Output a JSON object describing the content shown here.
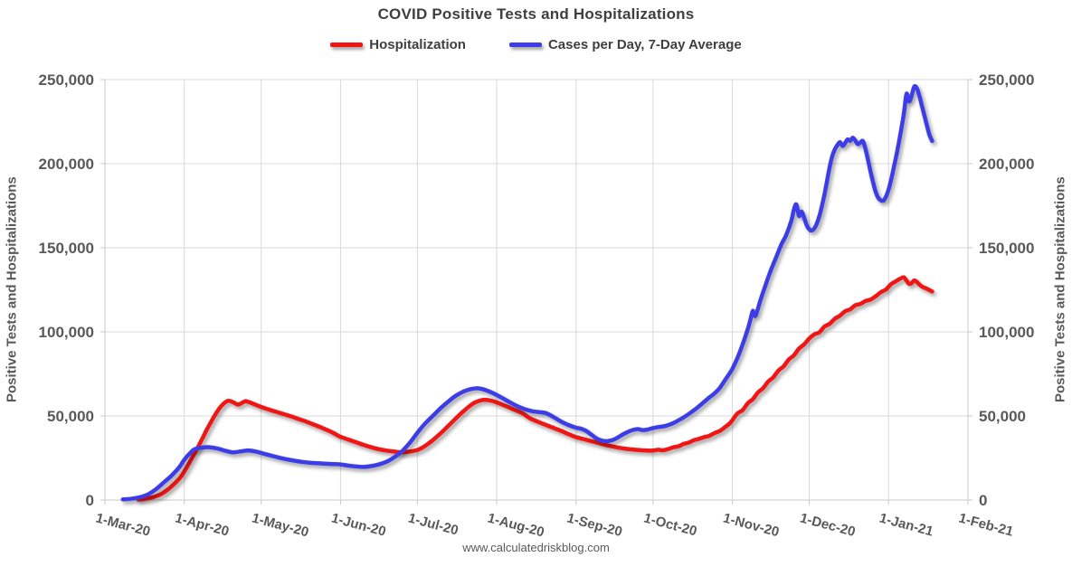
{
  "page": {
    "title": "COVID Positive Tests and Hospitalizations",
    "footer": "www.calculatedriskblog.com"
  },
  "colors": {
    "hospitalization_line": "#f01414",
    "cases_line": "#3c3ce8",
    "gridline": "#d9d9d9",
    "axis_line": "#c9c9c9",
    "tick_text": "#595959",
    "title_text": "#3f3f3f"
  },
  "chart_data": {
    "type": "line",
    "title": "COVID Positive Tests and Hospitalizations",
    "grid": true,
    "legend_position": "top",
    "x_axis": {
      "unit": "days since 1-Mar-20",
      "range_days": [
        0,
        337
      ],
      "tick_day_offsets": [
        0,
        31,
        61,
        92,
        122,
        153,
        184,
        214,
        245,
        275,
        306,
        337
      ],
      "tick_labels": [
        "1-Mar-20",
        "1-Apr-20",
        "1-May-20",
        "1-Jun-20",
        "1-Jul-20",
        "1-Aug-20",
        "1-Sep-20",
        "1-Oct-20",
        "1-Nov-20",
        "1-Dec-20",
        "1-Jan-21",
        "1-Feb-21"
      ]
    },
    "y_axis": {
      "ylim": [
        0,
        250000
      ],
      "ticks": [
        0,
        50000,
        100000,
        150000,
        200000,
        250000
      ],
      "tick_labels": [
        "0",
        "50,000",
        "100,000",
        "150,000",
        "200,000",
        "250,000"
      ],
      "left_label": "Positive Tests and Hospitalizations",
      "right_label": "Positive Tests and Hospitalizations"
    },
    "series": [
      {
        "name": "Hospitalization",
        "color": "#f01414",
        "points": [
          [
            13,
            300
          ],
          [
            16,
            800
          ],
          [
            19,
            1800
          ],
          [
            22,
            3600
          ],
          [
            25,
            6800
          ],
          [
            28,
            11000
          ],
          [
            30,
            14500
          ],
          [
            32,
            19500
          ],
          [
            34,
            25000
          ],
          [
            36,
            30500
          ],
          [
            38,
            36500
          ],
          [
            40,
            42500
          ],
          [
            42,
            48000
          ],
          [
            44,
            53000
          ],
          [
            46,
            56800
          ],
          [
            48,
            59000
          ],
          [
            50,
            58200
          ],
          [
            52,
            56800
          ],
          [
            54,
            58200
          ],
          [
            55,
            58800
          ],
          [
            57,
            57800
          ],
          [
            59,
            56600
          ],
          [
            61,
            55400
          ],
          [
            64,
            53800
          ],
          [
            67,
            52400
          ],
          [
            70,
            51000
          ],
          [
            73,
            49600
          ],
          [
            76,
            48000
          ],
          [
            79,
            46400
          ],
          [
            82,
            44600
          ],
          [
            85,
            42800
          ],
          [
            88,
            40800
          ],
          [
            90,
            39200
          ],
          [
            92,
            37600
          ],
          [
            95,
            36000
          ],
          [
            98,
            34400
          ],
          [
            101,
            32800
          ],
          [
            104,
            31400
          ],
          [
            107,
            30200
          ],
          [
            110,
            29400
          ],
          [
            113,
            28800
          ],
          [
            116,
            28400
          ],
          [
            119,
            28800
          ],
          [
            122,
            29800
          ],
          [
            124,
            31200
          ],
          [
            126,
            33200
          ],
          [
            128,
            35600
          ],
          [
            130,
            38200
          ],
          [
            132,
            41000
          ],
          [
            134,
            44000
          ],
          [
            136,
            47000
          ],
          [
            138,
            50000
          ],
          [
            140,
            52800
          ],
          [
            142,
            55400
          ],
          [
            144,
            57600
          ],
          [
            146,
            58900
          ],
          [
            148,
            59600
          ],
          [
            150,
            59300
          ],
          [
            152,
            58600
          ],
          [
            154,
            57400
          ],
          [
            157,
            55600
          ],
          [
            160,
            53600
          ],
          [
            163,
            51600
          ],
          [
            166,
            48600
          ],
          [
            169,
            46600
          ],
          [
            172,
            44800
          ],
          [
            175,
            43000
          ],
          [
            178,
            41200
          ],
          [
            181,
            39200
          ],
          [
            184,
            37400
          ],
          [
            187,
            36200
          ],
          [
            190,
            35000
          ],
          [
            193,
            33800
          ],
          [
            196,
            32600
          ],
          [
            199,
            31600
          ],
          [
            202,
            30800
          ],
          [
            205,
            30200
          ],
          [
            208,
            29800
          ],
          [
            211,
            29500
          ],
          [
            214,
            29400
          ],
          [
            216,
            29900
          ],
          [
            218,
            29600
          ],
          [
            220,
            30400
          ],
          [
            222,
            31400
          ],
          [
            224,
            32000
          ],
          [
            226,
            33400
          ],
          [
            228,
            34200
          ],
          [
            230,
            35600
          ],
          [
            232,
            36400
          ],
          [
            234,
            37400
          ],
          [
            236,
            38200
          ],
          [
            238,
            39800
          ],
          [
            240,
            41000
          ],
          [
            242,
            43200
          ],
          [
            244,
            45600
          ],
          [
            245,
            47500
          ],
          [
            247,
            51500
          ],
          [
            249,
            53500
          ],
          [
            251,
            57500
          ],
          [
            253,
            60000
          ],
          [
            255,
            64000
          ],
          [
            257,
            66500
          ],
          [
            259,
            70500
          ],
          [
            261,
            73000
          ],
          [
            263,
            77000
          ],
          [
            265,
            79500
          ],
          [
            267,
            83500
          ],
          [
            269,
            86000
          ],
          [
            271,
            90000
          ],
          [
            273,
            92500
          ],
          [
            275,
            96000
          ],
          [
            277,
            98500
          ],
          [
            279,
            99800
          ],
          [
            281,
            103200
          ],
          [
            283,
            104800
          ],
          [
            285,
            107800
          ],
          [
            287,
            109600
          ],
          [
            289,
            112200
          ],
          [
            291,
            113400
          ],
          [
            293,
            115800
          ],
          [
            295,
            116600
          ],
          [
            297,
            118400
          ],
          [
            299,
            119200
          ],
          [
            301,
            121200
          ],
          [
            303,
            123600
          ],
          [
            305,
            125200
          ],
          [
            307,
            128400
          ],
          [
            309,
            130200
          ],
          [
            310,
            131200
          ],
          [
            311,
            132000
          ],
          [
            312,
            132400
          ],
          [
            313,
            130500
          ],
          [
            314,
            128600
          ],
          [
            315,
            129000
          ],
          [
            316,
            130600
          ],
          [
            317,
            129800
          ],
          [
            318,
            128200
          ],
          [
            319,
            127000
          ],
          [
            321,
            125600
          ],
          [
            323,
            124000
          ]
        ]
      },
      {
        "name": "Cases per Day, 7-Day Average",
        "color": "#3c3ce8",
        "points": [
          [
            7,
            400
          ],
          [
            10,
            700
          ],
          [
            14,
            1800
          ],
          [
            17,
            3500
          ],
          [
            20,
            6500
          ],
          [
            23,
            10500
          ],
          [
            26,
            14500
          ],
          [
            29,
            19500
          ],
          [
            31,
            24000
          ],
          [
            33,
            27500
          ],
          [
            35,
            30200
          ],
          [
            38,
            31200
          ],
          [
            41,
            31400
          ],
          [
            44,
            30600
          ],
          [
            47,
            29300
          ],
          [
            50,
            28400
          ],
          [
            53,
            28900
          ],
          [
            56,
            29500
          ],
          [
            59,
            28800
          ],
          [
            62,
            27600
          ],
          [
            65,
            26400
          ],
          [
            68,
            25200
          ],
          [
            71,
            24200
          ],
          [
            74,
            23400
          ],
          [
            77,
            22700
          ],
          [
            80,
            22200
          ],
          [
            83,
            21900
          ],
          [
            86,
            21600
          ],
          [
            89,
            21400
          ],
          [
            92,
            21200
          ],
          [
            95,
            20500
          ],
          [
            98,
            20000
          ],
          [
            101,
            19700
          ],
          [
            104,
            20200
          ],
          [
            107,
            21200
          ],
          [
            110,
            22800
          ],
          [
            113,
            25500
          ],
          [
            116,
            29000
          ],
          [
            119,
            34000
          ],
          [
            122,
            40000
          ],
          [
            125,
            45500
          ],
          [
            128,
            50000
          ],
          [
            131,
            54500
          ],
          [
            134,
            58500
          ],
          [
            137,
            62000
          ],
          [
            140,
            64500
          ],
          [
            143,
            66000
          ],
          [
            146,
            66400
          ],
          [
            149,
            65200
          ],
          [
            152,
            63200
          ],
          [
            155,
            60800
          ],
          [
            158,
            58200
          ],
          [
            161,
            55800
          ],
          [
            164,
            54000
          ],
          [
            167,
            52800
          ],
          [
            170,
            52200
          ],
          [
            172,
            51800
          ],
          [
            174,
            50400
          ],
          [
            176,
            48600
          ],
          [
            178,
            46800
          ],
          [
            181,
            44600
          ],
          [
            184,
            43000
          ],
          [
            186,
            42400
          ],
          [
            188,
            41000
          ],
          [
            190,
            38800
          ],
          [
            192,
            36600
          ],
          [
            194,
            35400
          ],
          [
            196,
            35000
          ],
          [
            198,
            35600
          ],
          [
            200,
            37000
          ],
          [
            202,
            38800
          ],
          [
            204,
            40400
          ],
          [
            206,
            41600
          ],
          [
            208,
            42200
          ],
          [
            210,
            41600
          ],
          [
            212,
            42000
          ],
          [
            214,
            42800
          ],
          [
            216,
            43400
          ],
          [
            218,
            43800
          ],
          [
            220,
            44600
          ],
          [
            222,
            45800
          ],
          [
            224,
            47400
          ],
          [
            226,
            49200
          ],
          [
            228,
            51200
          ],
          [
            230,
            53400
          ],
          [
            232,
            55800
          ],
          [
            234,
            58400
          ],
          [
            236,
            61000
          ],
          [
            238,
            63400
          ],
          [
            240,
            66500
          ],
          [
            242,
            71000
          ],
          [
            244,
            75500
          ],
          [
            245,
            78000
          ],
          [
            247,
            84500
          ],
          [
            249,
            92500
          ],
          [
            251,
            101500
          ],
          [
            252,
            107000
          ],
          [
            253,
            112500
          ],
          [
            254,
            109500
          ],
          [
            256,
            119000
          ],
          [
            258,
            128000
          ],
          [
            260,
            136500
          ],
          [
            262,
            144000
          ],
          [
            264,
            151500
          ],
          [
            266,
            157500
          ],
          [
            268,
            166000
          ],
          [
            269,
            172500
          ],
          [
            270,
            175800
          ],
          [
            271,
            169000
          ],
          [
            272,
            171500
          ],
          [
            273,
            168000
          ],
          [
            274,
            163500
          ],
          [
            275,
            161000
          ],
          [
            276,
            160300
          ],
          [
            277,
            161500
          ],
          [
            278,
            164500
          ],
          [
            279,
            169000
          ],
          [
            280,
            175000
          ],
          [
            281,
            182000
          ],
          [
            282,
            190000
          ],
          [
            283,
            198000
          ],
          [
            284,
            204500
          ],
          [
            285,
            208500
          ],
          [
            286,
            211000
          ],
          [
            287,
            212800
          ],
          [
            288,
            210600
          ],
          [
            289,
            212200
          ],
          [
            290,
            214400
          ],
          [
            291,
            213600
          ],
          [
            292,
            215400
          ],
          [
            293,
            213800
          ],
          [
            294,
            211600
          ],
          [
            295,
            212600
          ],
          [
            296,
            213400
          ],
          [
            297,
            208500
          ],
          [
            298,
            202000
          ],
          [
            299,
            195000
          ],
          [
            300,
            188500
          ],
          [
            301,
            183000
          ],
          [
            302,
            179600
          ],
          [
            303,
            178200
          ],
          [
            304,
            178000
          ],
          [
            305,
            180500
          ],
          [
            306,
            184500
          ],
          [
            307,
            190500
          ],
          [
            308,
            197500
          ],
          [
            309,
            204500
          ],
          [
            310,
            212500
          ],
          [
            311,
            221000
          ],
          [
            312,
            230000
          ],
          [
            313,
            241500
          ],
          [
            314,
            237000
          ],
          [
            315,
            240500
          ],
          [
            316,
            245800
          ],
          [
            317,
            245000
          ],
          [
            318,
            240500
          ],
          [
            319,
            234500
          ],
          [
            320,
            228500
          ],
          [
            321,
            222500
          ],
          [
            322,
            217000
          ],
          [
            323,
            213500
          ]
        ]
      }
    ]
  }
}
